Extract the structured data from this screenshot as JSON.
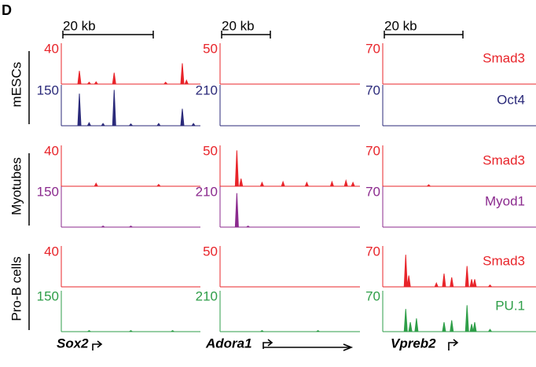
{
  "panel": "D",
  "scale_bar": "20 kb",
  "columns": [
    {
      "gene": "Sox2"
    },
    {
      "gene": "Adora1"
    },
    {
      "gene": "Vpreb2"
    }
  ],
  "rows": [
    {
      "label": "mESCs",
      "tracks": [
        {
          "name": "Smad3",
          "color": "#e8242a",
          "max": [
            40,
            50,
            70
          ]
        },
        {
          "name": "Oct4",
          "color": "#2b2a7a",
          "max": [
            150,
            210,
            70
          ]
        }
      ]
    },
    {
      "label": "Myotubes",
      "tracks": [
        {
          "name": "Smad3",
          "color": "#e8242a",
          "max": [
            40,
            50,
            70
          ]
        },
        {
          "name": "Myod1",
          "color": "#8b2a8e",
          "max": [
            150,
            210,
            70
          ]
        }
      ]
    },
    {
      "label": "Pro-B cells",
      "tracks": [
        {
          "name": "Smad3",
          "color": "#e8242a",
          "max": [
            40,
            50,
            70
          ]
        },
        {
          "name": "PU.1",
          "color": "#2e9e48",
          "max": [
            150,
            210,
            70
          ]
        }
      ]
    }
  ]
}
